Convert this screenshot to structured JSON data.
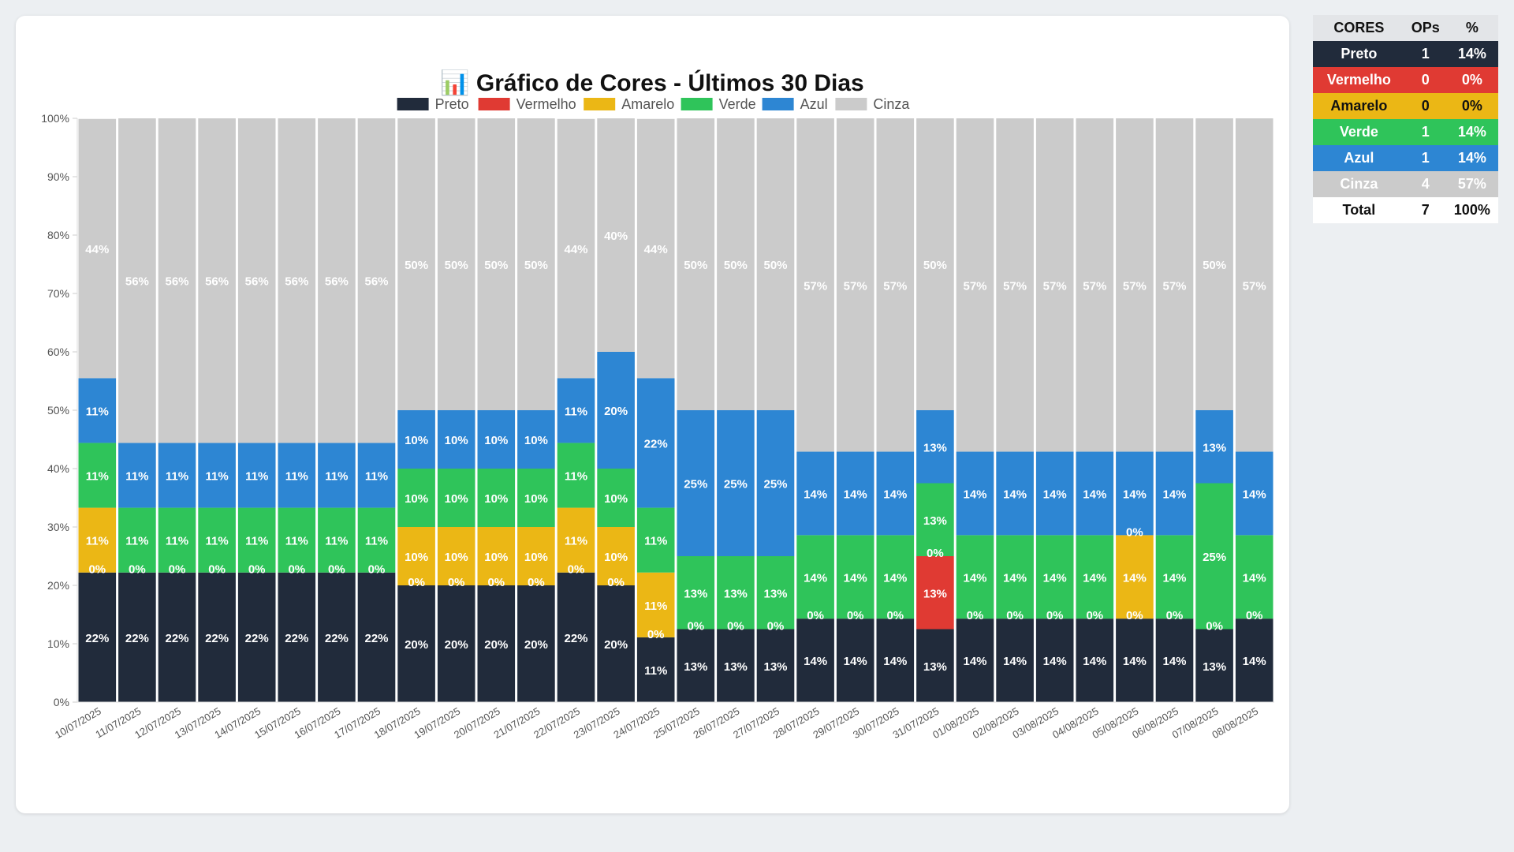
{
  "chart_data": {
    "type": "bar",
    "stacked": true,
    "title": "📊 Gráfico de Cores - Últimos 30 Dias",
    "xlabel": "",
    "ylabel": "",
    "ylim": [
      0,
      100
    ],
    "y_ticks": [
      "0%",
      "10%",
      "20%",
      "30%",
      "40%",
      "50%",
      "60%",
      "70%",
      "80%",
      "90%",
      "100%"
    ],
    "legend_position": "top",
    "categories": [
      "10/07/2025",
      "11/07/2025",
      "12/07/2025",
      "13/07/2025",
      "14/07/2025",
      "15/07/2025",
      "16/07/2025",
      "17/07/2025",
      "18/07/2025",
      "19/07/2025",
      "20/07/2025",
      "21/07/2025",
      "22/07/2025",
      "23/07/2025",
      "24/07/2025",
      "25/07/2025",
      "26/07/2025",
      "27/07/2025",
      "28/07/2025",
      "29/07/2025",
      "30/07/2025",
      "31/07/2025",
      "01/08/2025",
      "02/08/2025",
      "03/08/2025",
      "04/08/2025",
      "05/08/2025",
      "06/08/2025",
      "07/08/2025",
      "08/08/2025"
    ],
    "series": [
      {
        "name": "Preto",
        "color": "#212b3b",
        "values": [
          22.2,
          22.2,
          22.2,
          22.2,
          22.2,
          22.2,
          22.2,
          22.2,
          20,
          20,
          20,
          20,
          22.2,
          20,
          11.1,
          12.5,
          12.5,
          12.5,
          14.3,
          14.3,
          14.3,
          12.5,
          14.3,
          14.3,
          14.3,
          14.3,
          14.3,
          14.3,
          12.5,
          14.3
        ]
      },
      {
        "name": "Vermelho",
        "color": "#e03a33",
        "values": [
          0,
          0,
          0,
          0,
          0,
          0,
          0,
          0,
          0,
          0,
          0,
          0,
          0,
          0,
          0,
          0,
          0,
          0,
          0,
          0,
          0,
          12.5,
          0,
          0,
          0,
          0,
          0,
          0,
          0,
          0
        ]
      },
      {
        "name": "Amarelo",
        "color": "#ebb715",
        "values": [
          11.1,
          0,
          0,
          0,
          0,
          0,
          0,
          0,
          10,
          10,
          10,
          10,
          11.1,
          10,
          11.1,
          0,
          0,
          0,
          0,
          0,
          0,
          0,
          0,
          0,
          0,
          0,
          14.3,
          0,
          0,
          0
        ]
      },
      {
        "name": "Verde",
        "color": "#2fc45a",
        "values": [
          11.1,
          11.1,
          11.1,
          11.1,
          11.1,
          11.1,
          11.1,
          11.1,
          10,
          10,
          10,
          10,
          11.1,
          10,
          11.1,
          12.5,
          12.5,
          12.5,
          14.3,
          14.3,
          14.3,
          12.5,
          14.3,
          14.3,
          14.3,
          14.3,
          0,
          14.3,
          25,
          14.3
        ]
      },
      {
        "name": "Azul",
        "color": "#2d86d3",
        "values": [
          11.1,
          11.1,
          11.1,
          11.1,
          11.1,
          11.1,
          11.1,
          11.1,
          10,
          10,
          10,
          10,
          11.1,
          20,
          22.2,
          25,
          25,
          25,
          14.3,
          14.3,
          14.3,
          12.5,
          14.3,
          14.3,
          14.3,
          14.3,
          14.3,
          14.3,
          12.5,
          14.3
        ]
      },
      {
        "name": "Cinza",
        "color": "#cbcbcb",
        "values": [
          44.4,
          55.6,
          55.6,
          55.6,
          55.6,
          55.6,
          55.6,
          55.6,
          50,
          50,
          50,
          50,
          44.4,
          40,
          44.4,
          50,
          50,
          50,
          57.1,
          57.1,
          57.1,
          50,
          57.1,
          57.1,
          57.1,
          57.1,
          57.1,
          57.1,
          50,
          57.1
        ]
      }
    ],
    "data_labels": {
      "Preto": [
        "22%",
        "22%",
        "22%",
        "22%",
        "22%",
        "22%",
        "22%",
        "22%",
        "20%",
        "20%",
        "20%",
        "20%",
        "22%",
        "20%",
        "11%",
        "13%",
        "13%",
        "13%",
        "14%",
        "14%",
        "14%",
        "13%",
        "14%",
        "14%",
        "14%",
        "14%",
        "14%",
        "14%",
        "13%",
        "14%"
      ],
      "Vermelho": [
        "0%",
        "0%",
        "0%",
        "0%",
        "0%",
        "0%",
        "0%",
        "0%",
        "0%",
        "0%",
        "0%",
        "0%",
        "0%",
        "0%",
        "0%",
        "0%",
        "0%",
        "0%",
        "0%",
        "0%",
        "0%",
        "13%",
        "0%",
        "0%",
        "0%",
        "0%",
        "0%",
        "0%",
        "0%",
        "0%"
      ],
      "Amarelo": [
        "11%",
        "",
        "",
        "",
        "",
        "",
        "",
        "",
        "10%",
        "10%",
        "10%",
        "10%",
        "11%",
        "10%",
        "11%",
        "",
        "",
        "",
        "",
        "",
        "",
        "0%",
        "",
        "",
        "",
        "",
        "14%",
        "",
        "",
        ""
      ],
      "Verde": [
        "11%",
        "11%",
        "11%",
        "11%",
        "11%",
        "11%",
        "11%",
        "11%",
        "10%",
        "10%",
        "10%",
        "10%",
        "11%",
        "10%",
        "11%",
        "13%",
        "13%",
        "13%",
        "14%",
        "14%",
        "14%",
        "13%",
        "14%",
        "14%",
        "14%",
        "14%",
        "0%",
        "14%",
        "25%",
        "14%"
      ],
      "Azul": [
        "11%",
        "11%",
        "11%",
        "11%",
        "11%",
        "11%",
        "11%",
        "11%",
        "10%",
        "10%",
        "10%",
        "10%",
        "11%",
        "20%",
        "22%",
        "25%",
        "25%",
        "25%",
        "14%",
        "14%",
        "14%",
        "13%",
        "14%",
        "14%",
        "14%",
        "14%",
        "14%",
        "14%",
        "13%",
        "14%"
      ],
      "Cinza": [
        "44%",
        "56%",
        "56%",
        "56%",
        "56%",
        "56%",
        "56%",
        "56%",
        "50%",
        "50%",
        "50%",
        "50%",
        "44%",
        "40%",
        "44%",
        "50%",
        "50%",
        "50%",
        "57%",
        "57%",
        "57%",
        "50%",
        "57%",
        "57%",
        "57%",
        "57%",
        "57%",
        "57%",
        "50%",
        "57%"
      ]
    }
  },
  "summary": {
    "headers": [
      "CORES",
      "OPs",
      "%"
    ],
    "rows": [
      {
        "name": "Preto",
        "ops": "1",
        "pct": "14%",
        "bg": "#212b3b",
        "fg": "#ffffff"
      },
      {
        "name": "Vermelho",
        "ops": "0",
        "pct": "0%",
        "bg": "#e03a33",
        "fg": "#ffffff"
      },
      {
        "name": "Amarelo",
        "ops": "0",
        "pct": "0%",
        "bg": "#ebb715",
        "fg": "#111111"
      },
      {
        "name": "Verde",
        "ops": "1",
        "pct": "14%",
        "bg": "#2fc45a",
        "fg": "#ffffff"
      },
      {
        "name": "Azul",
        "ops": "1",
        "pct": "14%",
        "bg": "#2d86d3",
        "fg": "#ffffff"
      },
      {
        "name": "Cinza",
        "ops": "4",
        "pct": "57%",
        "bg": "#cbcbcb",
        "fg": "#ffffff"
      }
    ],
    "total": {
      "name": "Total",
      "ops": "7",
      "pct": "100%"
    }
  }
}
